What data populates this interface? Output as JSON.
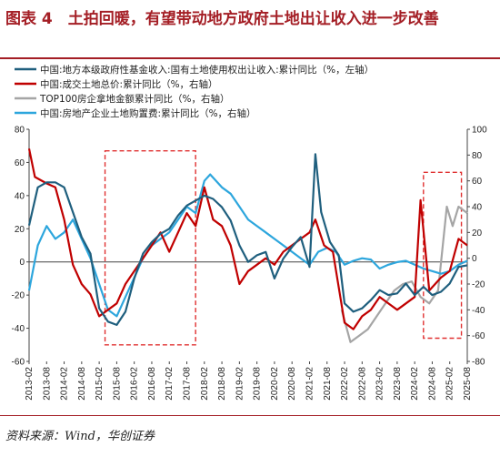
{
  "title": "图表 4　土拍回暖，有望带动地方政府土地出让收入进一步改善",
  "source": "资料来源：Wind，华创证券",
  "colors": {
    "title": "#a41e25",
    "fund": "#1f5f7e",
    "land_price": "#c00000",
    "top100": "#a5a5a5",
    "purchase": "#2da6dd",
    "highlight": "#e03030"
  },
  "chart_data": {
    "type": "line",
    "legend_position": "top-left",
    "grid": false,
    "y_left": {
      "range": [
        -60,
        80
      ],
      "ticks": [
        -60,
        -40,
        -20,
        0,
        20,
        40,
        60,
        80
      ]
    },
    "y_right": {
      "range": [
        -80,
        100
      ],
      "ticks": [
        -80,
        -60,
        -40,
        -20,
        0,
        20,
        40,
        60,
        80,
        100
      ]
    },
    "x_ticks": [
      "2013-02",
      "2013-08",
      "2014-02",
      "2014-08",
      "2015-02",
      "2015-08",
      "2016-02",
      "2016-08",
      "2017-02",
      "2017-08",
      "2018-02",
      "2018-08",
      "2019-02",
      "2019-08",
      "2020-02",
      "2020-08",
      "2021-02",
      "2021-08",
      "2022-02",
      "2022-08",
      "2023-02",
      "2023-08",
      "2024-02",
      "2024-08",
      "2025-02",
      "2025-08"
    ],
    "highlights": [
      {
        "x_start": "2015-04",
        "x_end": "2017-11",
        "y_low": -50,
        "y_high": 67
      },
      {
        "x_start": "2024-05",
        "x_end": "2025-06",
        "y_low": -46,
        "y_high": 54
      }
    ],
    "series": [
      {
        "key": "fund",
        "name": "中国:地方本级政府性基金收入:国有土地使用权出让收入:累计同比（%，左轴）",
        "axis": "left",
        "points": [
          [
            "2013-02",
            22
          ],
          [
            "2013-05",
            45
          ],
          [
            "2013-08",
            48
          ],
          [
            "2013-11",
            48
          ],
          [
            "2014-02",
            45
          ],
          [
            "2014-05",
            30
          ],
          [
            "2014-08",
            15
          ],
          [
            "2014-11",
            5
          ],
          [
            "2015-02",
            -28
          ],
          [
            "2015-05",
            -36
          ],
          [
            "2015-08",
            -38
          ],
          [
            "2015-11",
            -30
          ],
          [
            "2016-02",
            -10
          ],
          [
            "2016-05",
            5
          ],
          [
            "2016-08",
            12
          ],
          [
            "2016-11",
            17
          ],
          [
            "2017-02",
            20
          ],
          [
            "2017-05",
            28
          ],
          [
            "2017-08",
            34
          ],
          [
            "2017-11",
            37
          ],
          [
            "2018-02",
            40
          ],
          [
            "2018-05",
            38
          ],
          [
            "2018-08",
            33
          ],
          [
            "2018-11",
            25
          ],
          [
            "2019-02",
            10
          ],
          [
            "2019-05",
            0
          ],
          [
            "2019-08",
            4
          ],
          [
            "2019-11",
            6
          ],
          [
            "2020-02",
            -10
          ],
          [
            "2020-05",
            2
          ],
          [
            "2020-08",
            9
          ],
          [
            "2020-11",
            15
          ],
          [
            "2021-02",
            -3
          ],
          [
            "2021-04",
            65
          ],
          [
            "2021-06",
            30
          ],
          [
            "2021-09",
            12
          ],
          [
            "2021-12",
            4
          ],
          [
            "2022-02",
            -25
          ],
          [
            "2022-05",
            -30
          ],
          [
            "2022-08",
            -28
          ],
          [
            "2022-11",
            -23
          ],
          [
            "2023-02",
            -17
          ],
          [
            "2023-05",
            -20
          ],
          [
            "2023-08",
            -19
          ],
          [
            "2023-11",
            -13
          ],
          [
            "2024-02",
            -20
          ],
          [
            "2024-05",
            -15
          ],
          [
            "2024-08",
            -20
          ],
          [
            "2024-11",
            -18
          ],
          [
            "2025-02",
            -13
          ],
          [
            "2025-05",
            -3
          ],
          [
            "2025-08",
            -2
          ]
        ]
      },
      {
        "key": "land_price",
        "name": "中国:成交土地总价:累计同比（%，右轴）",
        "axis": "right",
        "points": [
          [
            "2013-02",
            85
          ],
          [
            "2013-04",
            63
          ],
          [
            "2013-08",
            58
          ],
          [
            "2013-11",
            55
          ],
          [
            "2014-02",
            30
          ],
          [
            "2014-05",
            -5
          ],
          [
            "2014-08",
            -20
          ],
          [
            "2014-11",
            -28
          ],
          [
            "2015-02",
            -45
          ],
          [
            "2015-05",
            -40
          ],
          [
            "2015-08",
            -35
          ],
          [
            "2015-11",
            -20
          ],
          [
            "2016-02",
            -10
          ],
          [
            "2016-05",
            0
          ],
          [
            "2016-08",
            10
          ],
          [
            "2016-11",
            20
          ],
          [
            "2017-02",
            5
          ],
          [
            "2017-05",
            20
          ],
          [
            "2017-08",
            35
          ],
          [
            "2017-11",
            25
          ],
          [
            "2018-02",
            55
          ],
          [
            "2018-05",
            30
          ],
          [
            "2018-08",
            25
          ],
          [
            "2018-11",
            10
          ],
          [
            "2019-02",
            -20
          ],
          [
            "2019-05",
            -10
          ],
          [
            "2019-08",
            -5
          ],
          [
            "2019-11",
            0
          ],
          [
            "2020-02",
            -5
          ],
          [
            "2020-05",
            5
          ],
          [
            "2020-08",
            10
          ],
          [
            "2020-11",
            15
          ],
          [
            "2021-02",
            20
          ],
          [
            "2021-04",
            30
          ],
          [
            "2021-07",
            10
          ],
          [
            "2021-10",
            5
          ],
          [
            "2022-02",
            -50
          ],
          [
            "2022-05",
            -55
          ],
          [
            "2022-08",
            -45
          ],
          [
            "2022-11",
            -40
          ],
          [
            "2023-02",
            -30
          ],
          [
            "2023-05",
            -35
          ],
          [
            "2023-08",
            -40
          ],
          [
            "2023-11",
            -35
          ],
          [
            "2024-02",
            -30
          ],
          [
            "2024-04",
            45
          ],
          [
            "2024-07",
            -25
          ],
          [
            "2024-11",
            -15
          ],
          [
            "2025-02",
            -10
          ],
          [
            "2025-05",
            15
          ],
          [
            "2025-08",
            10
          ]
        ]
      },
      {
        "key": "top100",
        "name": "TOP100房企拿地金额累计同比（%，右轴）",
        "axis": "right",
        "points": [
          [
            "2022-01",
            -40
          ],
          [
            "2022-04",
            -65
          ],
          [
            "2022-07",
            -60
          ],
          [
            "2022-10",
            -55
          ],
          [
            "2023-01",
            -45
          ],
          [
            "2023-04",
            -35
          ],
          [
            "2023-07",
            -25
          ],
          [
            "2023-10",
            -20
          ],
          [
            "2024-01",
            -18
          ],
          [
            "2024-04",
            -30
          ],
          [
            "2024-07",
            -35
          ],
          [
            "2024-10",
            -25
          ],
          [
            "2025-01",
            40
          ],
          [
            "2025-03",
            25
          ],
          [
            "2025-05",
            40
          ],
          [
            "2025-08",
            35
          ]
        ]
      },
      {
        "key": "purchase",
        "name": "中国:房地产企业土地购置费:累计同比（%，右轴）",
        "axis": "right",
        "points": [
          [
            "2013-02",
            -25
          ],
          [
            "2013-05",
            10
          ],
          [
            "2013-08",
            25
          ],
          [
            "2013-11",
            15
          ],
          [
            "2014-02",
            20
          ],
          [
            "2014-05",
            30
          ],
          [
            "2014-08",
            15
          ],
          [
            "2014-11",
            0
          ],
          [
            "2015-02",
            -20
          ],
          [
            "2015-05",
            -40
          ],
          [
            "2015-08",
            -45
          ],
          [
            "2015-11",
            -30
          ],
          [
            "2016-02",
            -15
          ],
          [
            "2016-05",
            0
          ],
          [
            "2016-08",
            10
          ],
          [
            "2016-11",
            15
          ],
          [
            "2017-02",
            20
          ],
          [
            "2017-05",
            30
          ],
          [
            "2017-08",
            40
          ],
          [
            "2017-11",
            35
          ],
          [
            "2018-02",
            60
          ],
          [
            "2018-04",
            65
          ],
          [
            "2018-08",
            55
          ],
          [
            "2018-11",
            50
          ],
          [
            "2019-02",
            40
          ],
          [
            "2019-05",
            30
          ],
          [
            "2019-08",
            25
          ],
          [
            "2019-11",
            20
          ],
          [
            "2020-02",
            15
          ],
          [
            "2020-05",
            10
          ],
          [
            "2020-08",
            5
          ],
          [
            "2020-11",
            0
          ],
          [
            "2021-02",
            -5
          ],
          [
            "2021-05",
            5
          ],
          [
            "2021-08",
            8
          ],
          [
            "2021-11",
            5
          ],
          [
            "2022-02",
            -5
          ],
          [
            "2022-05",
            -2
          ],
          [
            "2022-08",
            0
          ],
          [
            "2022-11",
            -1
          ],
          [
            "2023-02",
            -8
          ],
          [
            "2023-05",
            -5
          ],
          [
            "2023-08",
            -3
          ],
          [
            "2023-11",
            -2
          ],
          [
            "2024-02",
            -5
          ],
          [
            "2024-05",
            -8
          ],
          [
            "2024-08",
            -10
          ],
          [
            "2024-11",
            -12
          ],
          [
            "2025-02",
            -10
          ],
          [
            "2025-05",
            -5
          ],
          [
            "2025-08",
            -2
          ]
        ]
      }
    ]
  }
}
